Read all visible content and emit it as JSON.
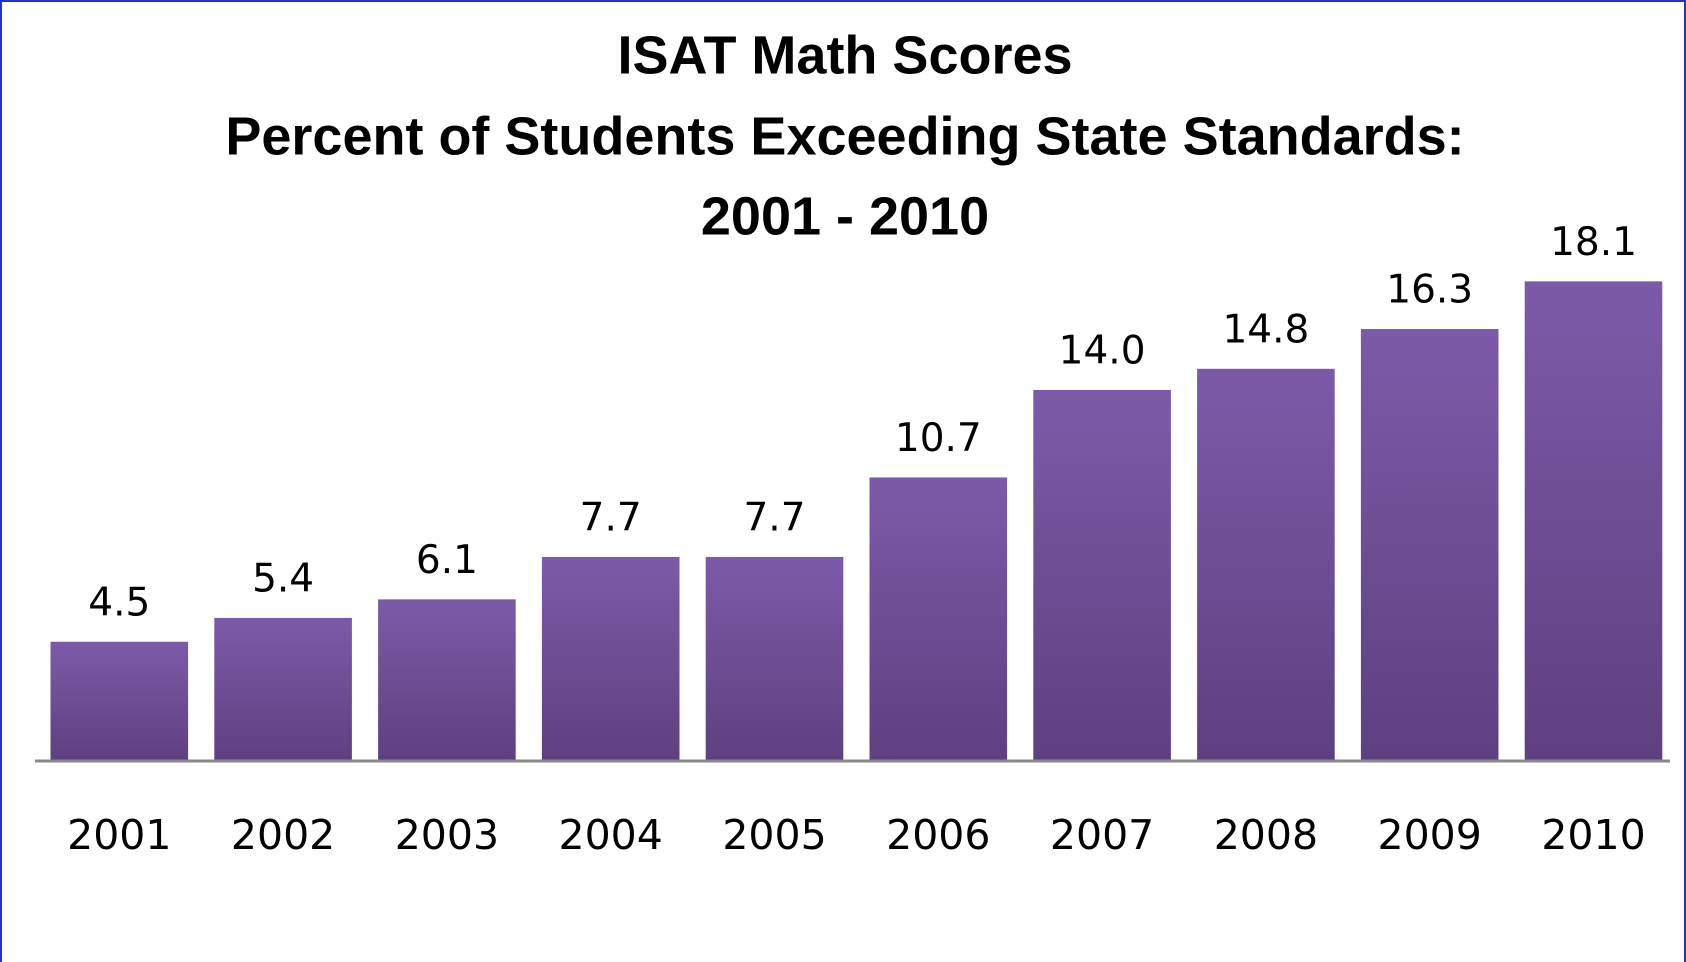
{
  "chart_data": {
    "type": "bar",
    "title": [
      "ISAT Math Scores",
      "Percent of Students Exceeding State Standards:",
      "2001 - 2010"
    ],
    "categories": [
      "2001",
      "2002",
      "2003",
      "2004",
      "2005",
      "2006",
      "2007",
      "2008",
      "2009",
      "2010"
    ],
    "values": [
      4.5,
      5.4,
      6.1,
      7.7,
      7.7,
      10.7,
      14.0,
      14.8,
      16.3,
      18.1
    ],
    "value_labels": [
      "4.5",
      "5.4",
      "6.1",
      "7.7",
      "7.7",
      "10.7",
      "14.0",
      "14.8",
      "16.3",
      "18.1"
    ],
    "color": [
      "#7d5aa8",
      "#5e4080"
    ]
  }
}
